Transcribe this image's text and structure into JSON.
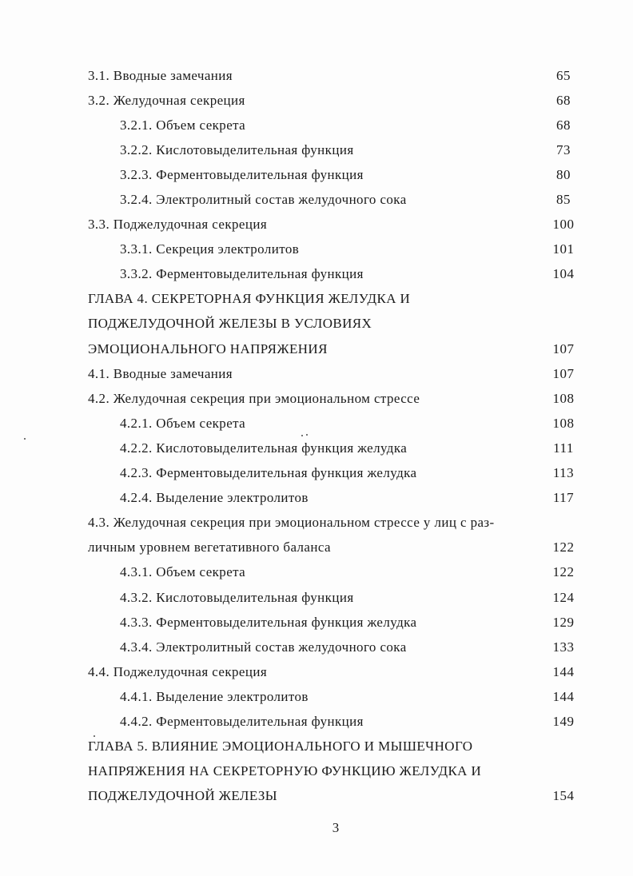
{
  "toc": {
    "entries": [
      {
        "level": 1,
        "text": "3.1. Вводные замечания",
        "page": "65"
      },
      {
        "level": 1,
        "text": "3.2. Желудочная секреция",
        "page": "68"
      },
      {
        "level": 2,
        "text": "3.2.1. Объем секрета",
        "page": "68"
      },
      {
        "level": 2,
        "text": "3.2.2. Кислотовыделительная функция",
        "page": "73"
      },
      {
        "level": 2,
        "text": "3.2.3. Ферментовыделительная функция",
        "page": "80"
      },
      {
        "level": 2,
        "text": "3.2.4. Электролитный состав желудочного сока",
        "page": "85"
      },
      {
        "level": 1,
        "text": "3.3. Поджелудочная секреция",
        "page": "100"
      },
      {
        "level": 2,
        "text": "3.3.1. Секреция электролитов",
        "page": "101"
      },
      {
        "level": 2,
        "text": "3.3.2. Ферментовыделительная функция",
        "page": "104"
      },
      {
        "level": 0,
        "text": "ГЛАВА 4. СЕКРЕТОРНАЯ ФУНКЦИЯ ЖЕЛУДКА И",
        "page": ""
      },
      {
        "level": 0,
        "text": "ПОДЖЕЛУДОЧНОЙ ЖЕЛЕЗЫ В УСЛОВИЯХ",
        "page": ""
      },
      {
        "level": 0,
        "text": "ЭМОЦИОНАЛЬНОГО НАПРЯЖЕНИЯ",
        "page": "107"
      },
      {
        "level": 1,
        "text": "4.1. Вводные замечания",
        "page": "107"
      },
      {
        "level": 1,
        "text": "4.2. Желудочная секреция при эмоциональном стрессе",
        "page": "108"
      },
      {
        "level": 2,
        "text": "4.2.1. Объем секрета",
        "page": "108"
      },
      {
        "level": 2,
        "text": "4.2.2. Кислотовыделительная функция желудка",
        "page": "111"
      },
      {
        "level": 2,
        "text": "4.2.3. Ферментовыделительная функция желудка",
        "page": "113"
      },
      {
        "level": 2,
        "text": "4.2.4. Выделение электролитов",
        "page": "117"
      },
      {
        "level": 1,
        "text": "4.3. Желудочная секреция при эмоциональном стрессе у лиц с раз-",
        "page": ""
      },
      {
        "level": 1,
        "text": "личным уровнем вегетативного баланса",
        "page": "122"
      },
      {
        "level": 2,
        "text": "4.3.1. Объем секрета",
        "page": "122"
      },
      {
        "level": 2,
        "text": "4.3.2. Кислотовыделительная функция",
        "page": "124"
      },
      {
        "level": 2,
        "text": "4.3.3. Ферментовыделительная функция желудка",
        "page": "129"
      },
      {
        "level": 2,
        "text": "4.3.4. Электролитный состав желудочного сока",
        "page": "133"
      },
      {
        "level": 1,
        "text": "4.4. Поджелудочная секреция",
        "page": "144"
      },
      {
        "level": 2,
        "text": "4.4.1. Выделение электролитов",
        "page": "144"
      },
      {
        "level": 2,
        "text": "4.4.2. Ферментовыделительная функция",
        "page": "149"
      },
      {
        "level": 0,
        "text": "ГЛАВА 5. ВЛИЯНИЕ ЭМОЦИОНАЛЬНОГО И МЫШЕЧНОГО",
        "page": ""
      },
      {
        "level": 0,
        "text": "НАПРЯЖЕНИЯ НА СЕКРЕТОРНУЮ ФУНКЦИЮ ЖЕЛУДКА И",
        "page": ""
      },
      {
        "level": 0,
        "text": "ПОДЖЕЛУДОЧНОЙ ЖЕЛЕЗЫ",
        "page": "154"
      }
    ]
  },
  "footer": {
    "page_number": "3"
  }
}
